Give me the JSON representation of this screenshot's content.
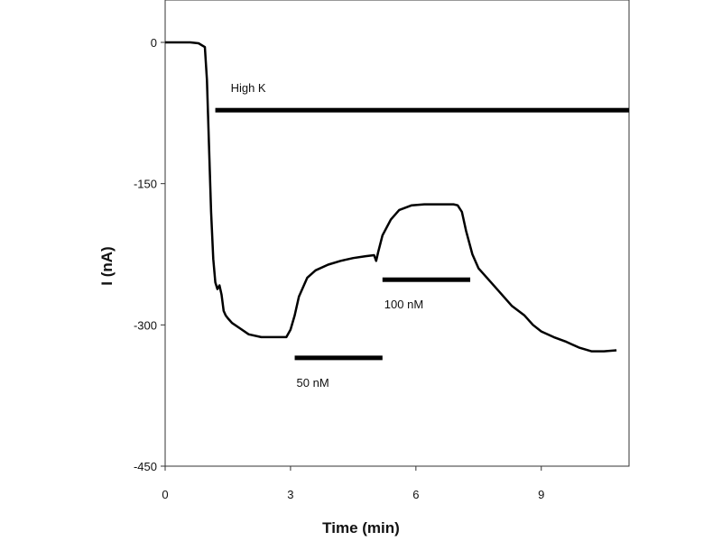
{
  "chart_data": {
    "type": "line",
    "xlabel": "Time (min)",
    "ylabel": "I (nA)",
    "xlim": [
      0,
      11.1
    ],
    "ylim": [
      -450,
      45
    ],
    "x_ticks": [
      0,
      3,
      6,
      9
    ],
    "x_tick_labels": [
      "0",
      "3",
      "6",
      "9"
    ],
    "y_ticks": [
      0,
      -150,
      -300,
      -450
    ],
    "y_tick_labels": [
      "0",
      "-150",
      "-300",
      "-450"
    ],
    "grid": false,
    "legend": "none",
    "series": [
      {
        "x": [
          0,
          0.3,
          0.6,
          0.8,
          0.95,
          1.0,
          1.05,
          1.1,
          1.15,
          1.2,
          1.25,
          1.3,
          1.35,
          1.4,
          1.45,
          1.5,
          1.6,
          1.8,
          2.0,
          2.3,
          2.6,
          2.9,
          3.0,
          3.1,
          3.2,
          3.4,
          3.6,
          3.9,
          4.2,
          4.5,
          4.8,
          5.0,
          5.05,
          5.1,
          5.2,
          5.4,
          5.6,
          5.9,
          6.2,
          6.6,
          6.9,
          7.0,
          7.1,
          7.2,
          7.35,
          7.5,
          7.8,
          8.0,
          8.3,
          8.6,
          8.8,
          9.0,
          9.3,
          9.6,
          9.9,
          10.2,
          10.5,
          10.8
        ],
        "y": [
          0,
          0,
          0,
          -1,
          -5,
          -40,
          -110,
          -180,
          -230,
          -255,
          -262,
          -258,
          -268,
          -285,
          -290,
          -293,
          -298,
          -304,
          -310,
          -313,
          -313,
          -313,
          -305,
          -290,
          -270,
          -250,
          -242,
          -236,
          -232,
          -229,
          -227,
          -226,
          -232,
          -222,
          -205,
          -188,
          -178,
          -173,
          -172,
          -172,
          -172,
          -173,
          -180,
          -200,
          -225,
          -240,
          -255,
          -265,
          -280,
          -290,
          -300,
          -307,
          -313,
          -318,
          -324,
          -328,
          -328,
          -327
        ]
      }
    ],
    "annotations": [
      {
        "label": "High K",
        "x_start": 1.2,
        "x_end": 11.1,
        "y": -72
      },
      {
        "label": "50 nM",
        "x_start": 3.1,
        "x_end": 5.2,
        "y": -335
      },
      {
        "label": "100 nM",
        "x_start": 5.2,
        "x_end": 7.3,
        "y": -252
      }
    ]
  }
}
